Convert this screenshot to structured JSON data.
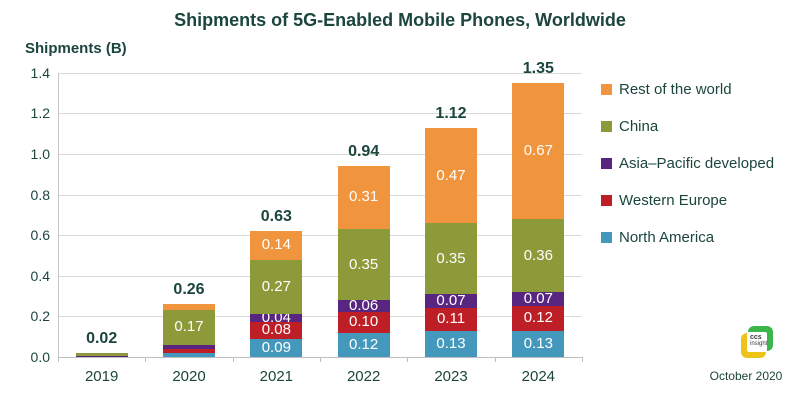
{
  "page": {
    "title": "Shipments of 5G-Enabled Mobile Phones, Worldwide",
    "footer_date": "October 2020",
    "logo": {
      "line1": "ccs",
      "line2": "insight"
    }
  },
  "colors": {
    "text_green": "#1B453D",
    "gridline": "#D9D9D9",
    "axis": "#BFBFBF",
    "logo_green": "#3CB54A",
    "logo_yellow": "#EEC319"
  },
  "chart_data": {
    "type": "bar",
    "stacked": true,
    "title": "Shipments of 5G-Enabled Mobile Phones, Worldwide",
    "ylabel": "Shipments (B)",
    "xlabel": "",
    "grid": true,
    "legend_position": "right",
    "categories": [
      "2019",
      "2020",
      "2021",
      "2022",
      "2023",
      "2024"
    ],
    "y_ticks": [
      "0.0",
      "0.2",
      "0.4",
      "0.6",
      "0.8",
      "1.0",
      "1.2",
      "1.4"
    ],
    "ylim": [
      0,
      1.4
    ],
    "totals": [
      "0.02",
      "0.26",
      "0.63",
      "0.94",
      "1.12",
      "1.35"
    ],
    "series": [
      {
        "name": "North America",
        "color": "#4398BC",
        "values": [
          0,
          0.02,
          0.09,
          0.12,
          0.13,
          0.13
        ],
        "labels": [
          "",
          "",
          "0.09",
          "0.12",
          "0.13",
          "0.13"
        ]
      },
      {
        "name": "Western Europe",
        "color": "#BE1F26",
        "values": [
          0,
          0.02,
          0.08,
          0.1,
          0.11,
          0.12
        ],
        "labels": [
          "",
          "",
          "0.08",
          "0.10",
          "0.11",
          "0.12"
        ]
      },
      {
        "name": "Asia–Pacific developed",
        "color": "#582681",
        "values": [
          0.005,
          0.02,
          0.04,
          0.06,
          0.07,
          0.07
        ],
        "labels": [
          "",
          "",
          "0.04",
          "0.06",
          "0.07",
          "0.07"
        ]
      },
      {
        "name": "China",
        "color": "#8C9A3A",
        "values": [
          0.015,
          0.17,
          0.27,
          0.35,
          0.35,
          0.36
        ],
        "labels": [
          "",
          "0.17",
          "0.27",
          "0.35",
          "0.35",
          "0.36"
        ]
      },
      {
        "name": "Rest of the world",
        "color": "#F0943D",
        "values": [
          0,
          0.03,
          0.14,
          0.31,
          0.47,
          0.67
        ],
        "labels": [
          "",
          "",
          "0.14",
          "0.31",
          "0.47",
          "0.67"
        ]
      }
    ],
    "legend": [
      "Rest of the world",
      "China",
      "Asia–Pacific developed",
      "Western Europe",
      "North America"
    ]
  }
}
